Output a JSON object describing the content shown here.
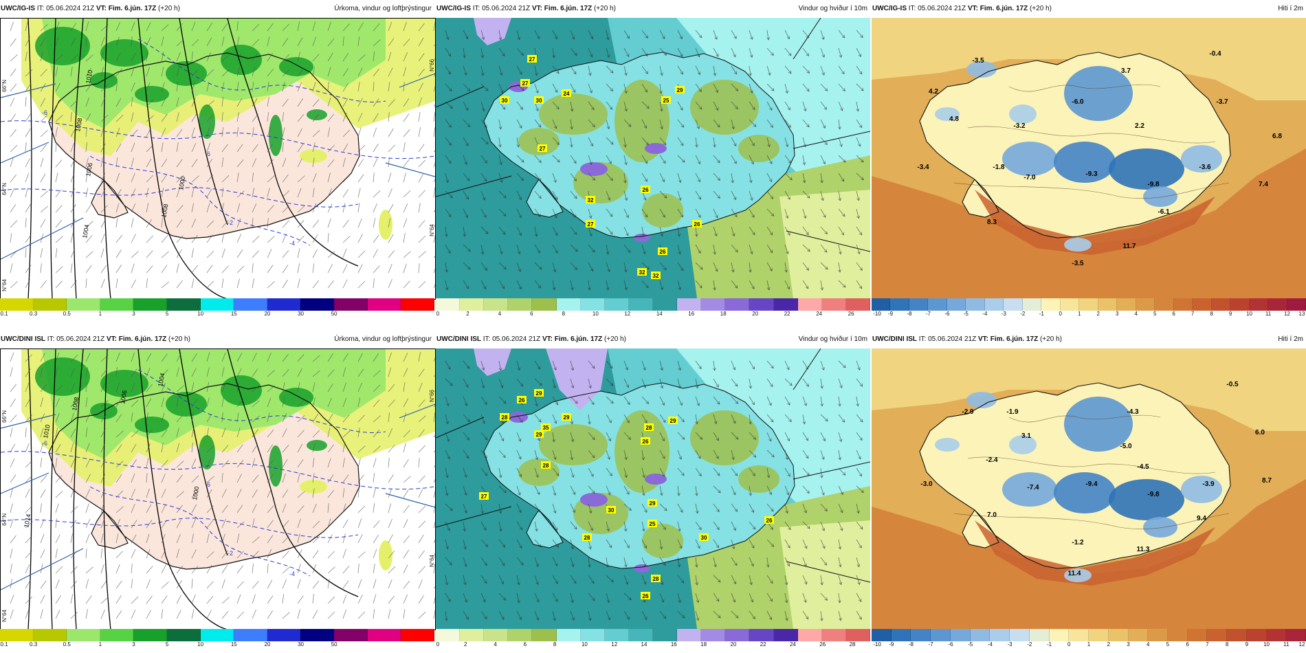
{
  "colorbars": {
    "precip": {
      "colors": [
        "#d6d600",
        "#b8c800",
        "#9be76b",
        "#58d245",
        "#17a12a",
        "#0d6e3d",
        "#00ecec",
        "#3d7dff",
        "#1f2bd1",
        "#000080",
        "#830066",
        "#e20082",
        "#ff0000"
      ],
      "ticks": [
        "0.1",
        "0.3",
        "0.5",
        "1",
        "3",
        "5",
        "10",
        "15",
        "20",
        "30",
        "50"
      ]
    },
    "wind_ig": {
      "colors": [
        "#f4f9dc",
        "#e0ef9e",
        "#c8e38a",
        "#b0d26a",
        "#9ebf4b",
        "#a6f2ef",
        "#85e1e3",
        "#63cdd2",
        "#47b6ba",
        "#2e9b9c",
        "#c2b3f0",
        "#a38ae4",
        "#8a69d9",
        "#6645c7",
        "#4a27a8",
        "#ffa8a8",
        "#f08080",
        "#e06060"
      ],
      "ticks": [
        "0",
        "2",
        "4",
        "6",
        "8",
        "10",
        "12",
        "14",
        "16",
        "18",
        "20",
        "22",
        "24",
        "26"
      ]
    },
    "wind_dini": {
      "colors": [
        "#f4f9dc",
        "#e0ef9e",
        "#c8e38a",
        "#b0d26a",
        "#9ebf4b",
        "#a6f2ef",
        "#85e1e3",
        "#63cdd2",
        "#47b6ba",
        "#2e9b9c",
        "#c2b3f0",
        "#a38ae4",
        "#8a69d9",
        "#6645c7",
        "#4a27a8",
        "#ffa8a8",
        "#f08080",
        "#e06060"
      ],
      "ticks": [
        "0",
        "2",
        "4",
        "6",
        "8",
        "10",
        "12",
        "14",
        "16",
        "18",
        "20",
        "22",
        "24",
        "26",
        "28"
      ]
    },
    "temp_ig": {
      "colors": [
        "#1f5fa6",
        "#2f73b8",
        "#4484c6",
        "#5c97d2",
        "#76a9db",
        "#8fbbe3",
        "#a9cdea",
        "#c6deef",
        "#e4edd5",
        "#fbf3b8",
        "#f6e59a",
        "#f0d480",
        "#e9c26a",
        "#e2ae57",
        "#dc9a48",
        "#d6863c",
        "#d07434",
        "#c9622f",
        "#c2512e",
        "#bc4230",
        "#b33234",
        "#a9253a",
        "#9e1a40"
      ],
      "ticks": [
        "-10",
        "-9",
        "-8",
        "-7",
        "-6",
        "-5",
        "-4",
        "-3",
        "-2",
        "-1",
        "0",
        "1",
        "2",
        "3",
        "4",
        "5",
        "6",
        "7",
        "8",
        "9",
        "10",
        "11",
        "12",
        "13"
      ]
    },
    "temp_dini": {
      "colors": [
        "#1f5fa6",
        "#2f73b8",
        "#4484c6",
        "#5c97d2",
        "#76a9db",
        "#8fbbe3",
        "#a9cdea",
        "#c6deef",
        "#e4edd5",
        "#fbf3b8",
        "#f6e59a",
        "#f0d480",
        "#e9c26a",
        "#e2ae57",
        "#dc9a48",
        "#d6863c",
        "#d07434",
        "#c9622f",
        "#c2512e",
        "#bc4230",
        "#b33234",
        "#a9253a"
      ],
      "ticks": [
        "-10",
        "-9",
        "-8",
        "-7",
        "-6",
        "-5",
        "-4",
        "-3",
        "-2",
        "-1",
        "0",
        "1",
        "2",
        "3",
        "4",
        "5",
        "6",
        "7",
        "8",
        "9",
        "10",
        "11",
        "12"
      ]
    }
  },
  "panels": [
    {
      "id": "ig-precip",
      "model": "UWC/IG-IS",
      "it": " IT: 05.06.2024 21Z ",
      "vt": "VT: Fim. 6.jún. 17Z",
      "lead": " (+20 h)",
      "title": "Úrkoma, vindur og loftþrýstingur",
      "type": "precip",
      "colorbar": "precip",
      "side_labels": [
        "66°N",
        "64°N",
        "N°64"
      ],
      "pressure_labels": [
        "1010",
        "1008",
        "1006",
        "1004",
        "1008",
        "1000"
      ],
      "contour_values": [
        "-6",
        "-4",
        "-2",
        "6"
      ]
    },
    {
      "id": "ig-wind",
      "model": "UWC/IG-IS",
      "it": " IT: 05.06.2024 21Z ",
      "vt": "VT: Fim. 6.jún. 17Z",
      "lead": " (+20 h)",
      "title": "Vindur og hviður í 10m",
      "type": "wind",
      "colorbar": "wind_ig",
      "side_labels": [
        "N°66",
        "N°64"
      ],
      "gusts": [
        "27",
        "27",
        "30",
        "30",
        "24",
        "25",
        "29",
        "27",
        "32",
        "26",
        "27",
        "26",
        "26",
        "32",
        "32"
      ]
    },
    {
      "id": "ig-temp",
      "model": "UWC/IG-IS",
      "it": " IT: 05.06.2024 21Z ",
      "vt": "VT: Fim. 6.jún. 17Z",
      "lead": " (+20 h)",
      "title": "Hiti í 2m",
      "type": "temp",
      "colorbar": "temp_ig",
      "temps": [
        "-3.5",
        "-0.4",
        "4.2",
        "3.7",
        "-6.0",
        "-3.7",
        "4.8",
        "-3.2",
        "2.2",
        "6.8",
        "-3.4",
        "-1.8",
        "-7.0",
        "-9.3",
        "-9.8",
        "-3.6",
        "7.4",
        "-6.1",
        "8.3",
        "11.7",
        "-3.5"
      ]
    },
    {
      "id": "dini-precip",
      "model": "UWC/DINI ISL",
      "it": " IT: 05.06.2024 21Z ",
      "vt": "VT: Fim. 6.jún. 17Z",
      "lead": " (+20 h)",
      "title": "Úrkoma, vindur og loftþrýstingur",
      "type": "precip",
      "colorbar": "precip",
      "side_labels": [
        "66°N",
        "64°N",
        "N°64"
      ],
      "pressure_labels": [
        "1014",
        "1010",
        "1008",
        "1006",
        "1004",
        "1000"
      ],
      "contour_values": [
        "-6",
        "-4",
        "-2",
        "6"
      ]
    },
    {
      "id": "dini-wind",
      "model": "UWC/DINI ISL",
      "it": " IT: 05.06.2024 21Z ",
      "vt": "VT: Fim. 6.jún. 17Z",
      "lead": " (+20 h)",
      "title": "Vindur og hviður í 10m",
      "type": "wind",
      "colorbar": "wind_dini",
      "side_labels": [
        "N°66",
        "N°64"
      ],
      "gusts": [
        "26",
        "29",
        "28",
        "29",
        "35",
        "29",
        "28",
        "29",
        "26",
        "28",
        "27",
        "30",
        "29",
        "25",
        "26",
        "28",
        "30",
        "28",
        "26"
      ]
    },
    {
      "id": "dini-temp",
      "model": "UWC/DINI ISL",
      "it": " IT: 05.06.2024 21Z ",
      "vt": "VT: Fim. 6.jún. 17Z",
      "lead": " (+20 h)",
      "title": "Hiti í 2m",
      "type": "temp",
      "colorbar": "temp_dini",
      "temps": [
        "-2.9",
        "-1.9",
        "-4.3",
        "-0.5",
        "3.1",
        "-5.0",
        "6.0",
        "-2.4",
        "-4.5",
        "-3.0",
        "-7.4",
        "-9.4",
        "-9.8",
        "-3.9",
        "8.7",
        "7.0",
        "9.4",
        "-1.2",
        "11.3",
        "11.4"
      ]
    }
  ]
}
